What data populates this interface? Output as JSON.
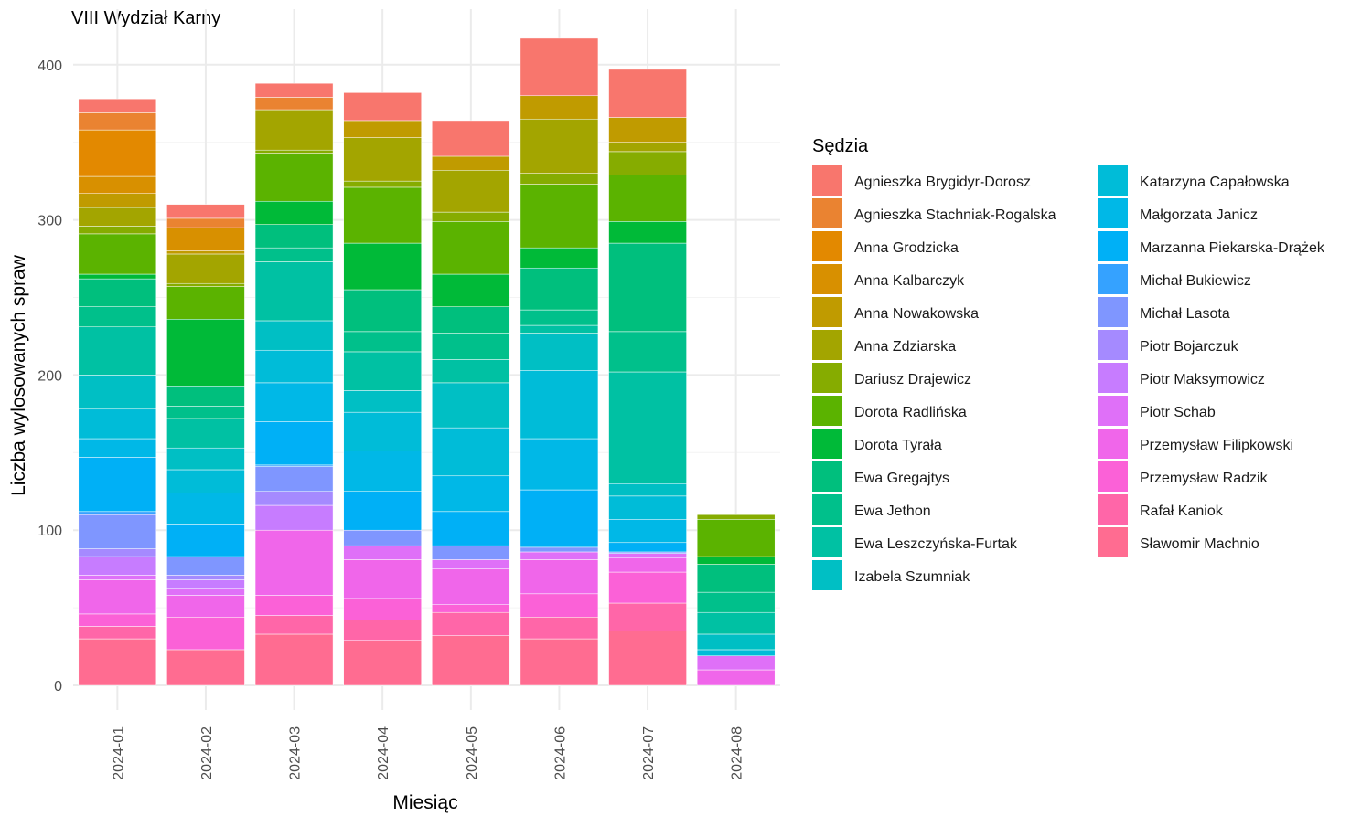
{
  "chart_data": {
    "type": "bar",
    "stacked": true,
    "title": "VIII Wydział Karny",
    "xlabel": "Miesiąc",
    "ylabel": "Liczba wylosowanych spraw",
    "ylim": [
      0,
      430
    ],
    "yticks": [
      0,
      100,
      200,
      300,
      400
    ],
    "grid": true,
    "legend_title": "Sędzia",
    "legend_position": "right",
    "categories": [
      "2024-01",
      "2024-02",
      "2024-03",
      "2024-04",
      "2024-05",
      "2024-06",
      "2024-07",
      "2024-08"
    ],
    "series": [
      {
        "name": "Agnieszka Brygidyr-Dorosz",
        "color": "#F8766D",
        "values": [
          9,
          9,
          9,
          18,
          23,
          37,
          31,
          0
        ]
      },
      {
        "name": "Agnieszka Stachniak-Rogalska",
        "color": "#EA8331",
        "values": [
          11,
          6,
          8,
          0,
          0,
          0,
          0,
          0
        ]
      },
      {
        "name": "Anna Grodzicka",
        "color": "#E38900",
        "values": [
          30,
          0,
          0,
          0,
          0,
          0,
          0,
          0
        ]
      },
      {
        "name": "Anna Kalbarczyk",
        "color": "#D89000",
        "values": [
          11,
          15,
          0,
          0,
          0,
          0,
          0,
          0
        ]
      },
      {
        "name": "Anna Nowakowska",
        "color": "#C09B00",
        "values": [
          9,
          2,
          0,
          11,
          9,
          15,
          16,
          0
        ]
      },
      {
        "name": "Anna Zdziarska",
        "color": "#A3A500",
        "values": [
          12,
          19,
          26,
          28,
          27,
          35,
          6,
          0
        ]
      },
      {
        "name": "Dariusz Drajewicz",
        "color": "#86AC00",
        "values": [
          5,
          2,
          2,
          4,
          6,
          7,
          15,
          3
        ]
      },
      {
        "name": "Dorota Radlińska",
        "color": "#5BB300",
        "values": [
          26,
          21,
          31,
          36,
          34,
          41,
          30,
          24
        ]
      },
      {
        "name": "Dorota Tyrała",
        "color": "#00BA38",
        "values": [
          3,
          43,
          15,
          30,
          21,
          13,
          14,
          5
        ]
      },
      {
        "name": "Ewa Gregajtys",
        "color": "#00BF7D",
        "values": [
          18,
          13,
          15,
          27,
          17,
          27,
          57,
          18
        ]
      },
      {
        "name": "Ewa Jethon",
        "color": "#00C08B",
        "values": [
          13,
          8,
          9,
          13,
          17,
          10,
          26,
          13
        ]
      },
      {
        "name": "Ewa Leszczyńska-Furtak",
        "color": "#00C1A3",
        "values": [
          31,
          19,
          38,
          25,
          15,
          5,
          72,
          14
        ]
      },
      {
        "name": "Izabela Szumniak",
        "color": "#00BFC4",
        "values": [
          22,
          14,
          19,
          14,
          29,
          24,
          8,
          10
        ]
      },
      {
        "name": "Katarzyna Capałowska",
        "color": "#00BCD8",
        "values": [
          19,
          15,
          21,
          25,
          31,
          44,
          15,
          4
        ]
      },
      {
        "name": "Małgorzata Janicz",
        "color": "#00B8E7",
        "values": [
          12,
          20,
          25,
          26,
          23,
          33,
          15,
          0
        ]
      },
      {
        "name": "Marzanna Piekarska-Drążek",
        "color": "#00B0F6",
        "values": [
          35,
          21,
          28,
          25,
          22,
          37,
          6,
          0
        ]
      },
      {
        "name": "Michał Bukiewicz",
        "color": "#35A2FF",
        "values": [
          2,
          0,
          1,
          0,
          0,
          0,
          0,
          0
        ]
      },
      {
        "name": "Michał Lasota",
        "color": "#7F96FF",
        "values": [
          22,
          12,
          16,
          10,
          9,
          3,
          1,
          0
        ]
      },
      {
        "name": "Piotr Bojarczuk",
        "color": "#A58AFF",
        "values": [
          5,
          3,
          9,
          0,
          0,
          0,
          0,
          0
        ]
      },
      {
        "name": "Piotr Maksymowicz",
        "color": "#C77CFF",
        "values": [
          12,
          6,
          16,
          0,
          0,
          0,
          0,
          0
        ]
      },
      {
        "name": "Piotr Schab",
        "color": "#DF70F8",
        "values": [
          3,
          4,
          0,
          9,
          6,
          5,
          3,
          9
        ]
      },
      {
        "name": "Przemysław Filipkowski",
        "color": "#F066EA",
        "values": [
          22,
          14,
          42,
          25,
          23,
          22,
          9,
          10
        ]
      },
      {
        "name": "Przemysław Radzik",
        "color": "#FB61D7",
        "values": [
          8,
          21,
          13,
          14,
          5,
          15,
          20,
          0
        ]
      },
      {
        "name": "Rafał Kaniok",
        "color": "#FF66A8",
        "values": [
          8,
          0,
          12,
          13,
          15,
          14,
          18,
          0
        ]
      },
      {
        "name": "Sławomir Machnio",
        "color": "#FF6C91",
        "values": [
          30,
          23,
          33,
          29,
          32,
          30,
          35,
          0
        ]
      }
    ]
  }
}
